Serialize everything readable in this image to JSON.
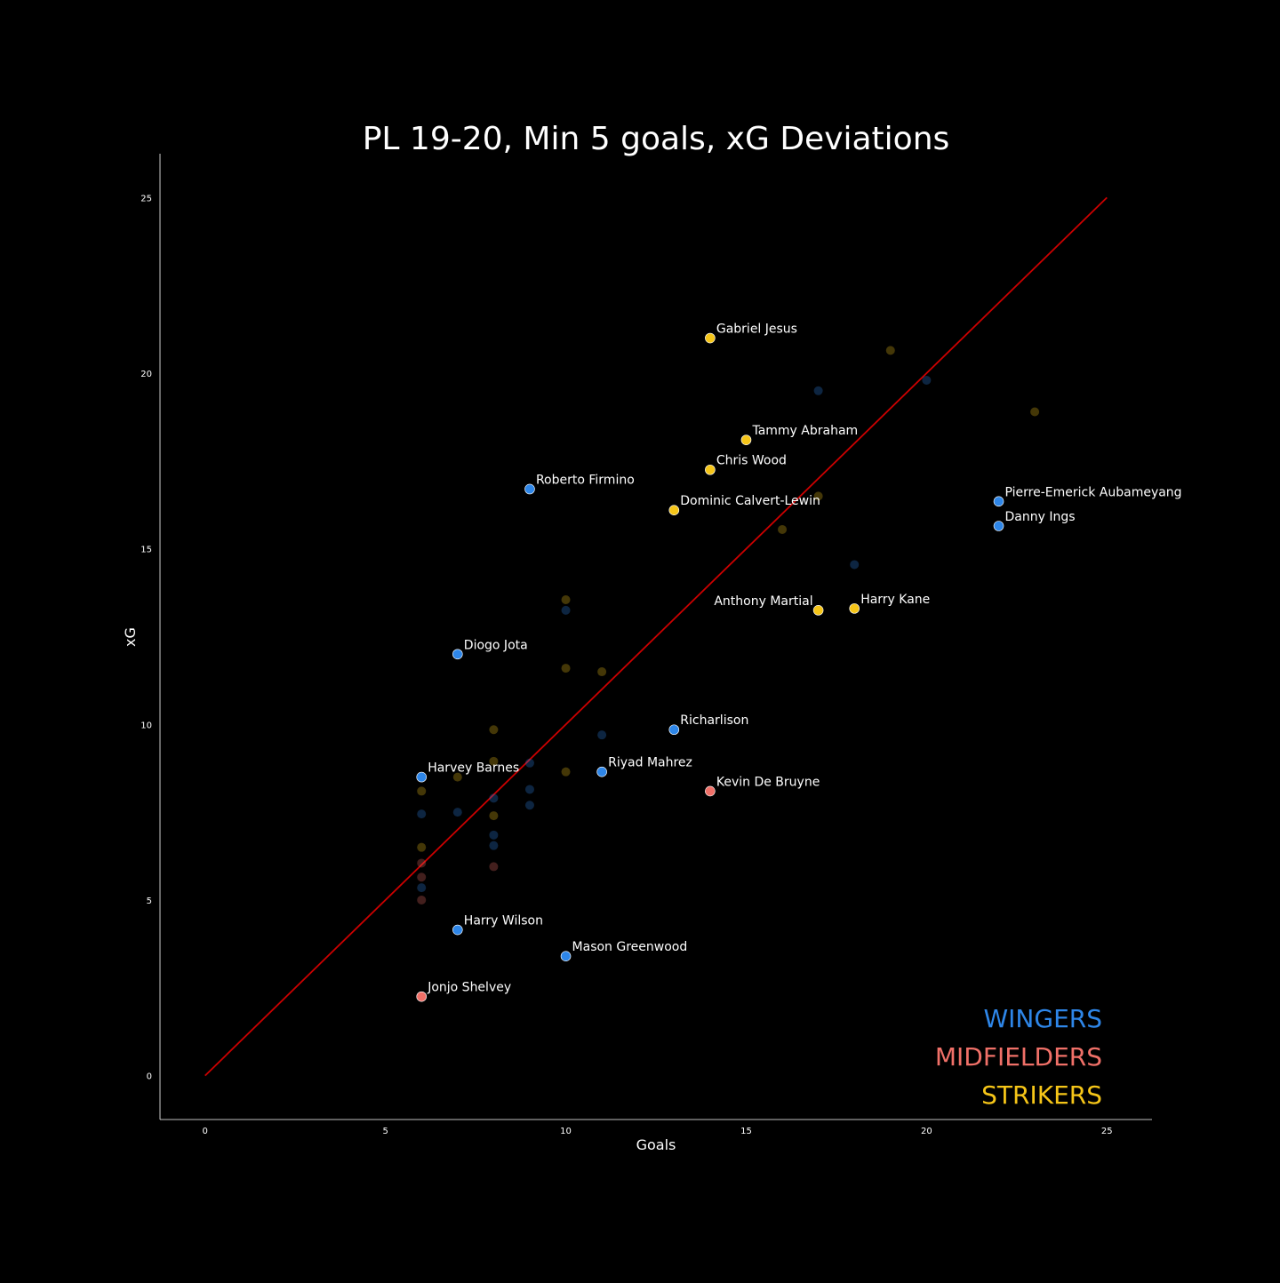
{
  "chart_data": {
    "type": "scatter",
    "title": "PL 19-20, Min 5 goals, xG Deviations",
    "xlabel": "Goals",
    "ylabel": "xG",
    "xlim": [
      -1.25,
      26.25
    ],
    "ylim": [
      -1.25,
      26.25
    ],
    "xticks": [
      0,
      5,
      10,
      15,
      20,
      25
    ],
    "yticks": [
      0,
      5,
      10,
      15,
      20,
      25
    ],
    "grid": false,
    "legend_placement": "bottom-right",
    "reference_line": {
      "from": [
        0,
        0
      ],
      "to": [
        25,
        25
      ],
      "color": "#cc0000"
    },
    "colors": {
      "WINGERS": "#2e86e8",
      "MIDFIELDERS": "#f07068",
      "STRIKERS": "#f5c518",
      "background": "#000000",
      "text": "#ffffff"
    },
    "legend": [
      {
        "name": "WINGERS",
        "color": "#2e86e8"
      },
      {
        "name": "MIDFIELDERS",
        "color": "#f07068"
      },
      {
        "name": "STRIKERS",
        "color": "#f5c518"
      }
    ],
    "labeled_points": [
      {
        "name": "Gabriel Jesus",
        "group": "STRIKERS",
        "x": 14,
        "y": 21.0
      },
      {
        "name": "Tammy Abraham",
        "group": "STRIKERS",
        "x": 15,
        "y": 18.1
      },
      {
        "name": "Chris Wood",
        "group": "STRIKERS",
        "x": 14,
        "y": 17.25
      },
      {
        "name": "Roberto Firmino",
        "group": "WINGERS",
        "x": 9,
        "y": 16.7
      },
      {
        "name": "Dominic Calvert-Lewin",
        "group": "STRIKERS",
        "x": 13,
        "y": 16.1
      },
      {
        "name": "Pierre-Emerick Aubameyang",
        "group": "WINGERS",
        "x": 22,
        "y": 16.35
      },
      {
        "name": "Danny Ings",
        "group": "WINGERS",
        "x": 22,
        "y": 15.65
      },
      {
        "name": "Anthony Martial",
        "group": "STRIKERS",
        "x": 17,
        "y": 13.25,
        "label_side": "left"
      },
      {
        "name": "Harry Kane",
        "group": "STRIKERS",
        "x": 18,
        "y": 13.3
      },
      {
        "name": "Diogo Jota",
        "group": "WINGERS",
        "x": 7,
        "y": 12.0
      },
      {
        "name": "Richarlison",
        "group": "WINGERS",
        "x": 13,
        "y": 9.85
      },
      {
        "name": "Harvey Barnes",
        "group": "WINGERS",
        "x": 6,
        "y": 8.5
      },
      {
        "name": "Riyad Mahrez",
        "group": "WINGERS",
        "x": 11,
        "y": 8.65
      },
      {
        "name": "Kevin De Bruyne",
        "group": "MIDFIELDERS",
        "x": 14,
        "y": 8.1
      },
      {
        "name": "Harry Wilson",
        "group": "WINGERS",
        "x": 7,
        "y": 4.15
      },
      {
        "name": "Mason Greenwood",
        "group": "WINGERS",
        "x": 10,
        "y": 3.4
      },
      {
        "name": "Jonjo Shelvey",
        "group": "MIDFIELDERS",
        "x": 6,
        "y": 2.25
      }
    ],
    "faded_points": [
      {
        "group": "STRIKERS",
        "x": 19,
        "y": 20.65
      },
      {
        "group": "WINGERS",
        "x": 17,
        "y": 19.5
      },
      {
        "group": "WINGERS",
        "x": 20,
        "y": 19.8
      },
      {
        "group": "STRIKERS",
        "x": 23,
        "y": 18.9
      },
      {
        "group": "STRIKERS",
        "x": 17,
        "y": 16.5
      },
      {
        "group": "STRIKERS",
        "x": 16,
        "y": 15.55
      },
      {
        "group": "WINGERS",
        "x": 18,
        "y": 14.55
      },
      {
        "group": "STRIKERS",
        "x": 10,
        "y": 13.55
      },
      {
        "group": "WINGERS",
        "x": 10,
        "y": 13.25
      },
      {
        "group": "STRIKERS",
        "x": 10,
        "y": 11.6
      },
      {
        "group": "STRIKERS",
        "x": 11,
        "y": 11.5
      },
      {
        "group": "STRIKERS",
        "x": 8,
        "y": 9.85
      },
      {
        "group": "WINGERS",
        "x": 11,
        "y": 9.7
      },
      {
        "group": "STRIKERS",
        "x": 8,
        "y": 8.95
      },
      {
        "group": "WINGERS",
        "x": 9,
        "y": 8.9
      },
      {
        "group": "STRIKERS",
        "x": 10,
        "y": 8.65
      },
      {
        "group": "STRIKERS",
        "x": 7,
        "y": 8.5
      },
      {
        "group": "WINGERS",
        "x": 9,
        "y": 8.15
      },
      {
        "group": "STRIKERS",
        "x": 6,
        "y": 8.1
      },
      {
        "group": "WINGERS",
        "x": 8,
        "y": 7.9
      },
      {
        "group": "WINGERS",
        "x": 9,
        "y": 7.7
      },
      {
        "group": "WINGERS",
        "x": 7,
        "y": 7.5
      },
      {
        "group": "WINGERS",
        "x": 6,
        "y": 7.45
      },
      {
        "group": "STRIKERS",
        "x": 8,
        "y": 7.4
      },
      {
        "group": "WINGERS",
        "x": 8,
        "y": 6.85
      },
      {
        "group": "WINGERS",
        "x": 8,
        "y": 6.55
      },
      {
        "group": "STRIKERS",
        "x": 6,
        "y": 6.5
      },
      {
        "group": "MIDFIELDERS",
        "x": 6,
        "y": 6.05
      },
      {
        "group": "MIDFIELDERS",
        "x": 8,
        "y": 5.95
      },
      {
        "group": "MIDFIELDERS",
        "x": 6,
        "y": 5.65
      },
      {
        "group": "WINGERS",
        "x": 6,
        "y": 5.35
      },
      {
        "group": "MIDFIELDERS",
        "x": 6,
        "y": 5.0
      }
    ]
  }
}
